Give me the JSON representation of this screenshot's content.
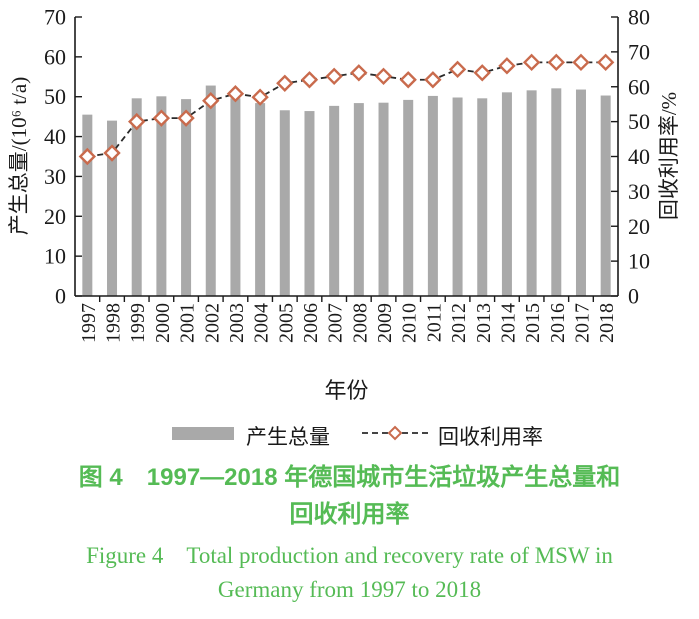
{
  "figure": {
    "caption_cn_line1": "图 4　1997—2018 年德国城市生活垃圾产生总量和",
    "caption_cn_line2": "回收利用率",
    "caption_en_line1": "Figure 4　Total production and recovery rate of MSW in",
    "caption_en_line2": "Germany from 1997 to 2018",
    "caption_color": "#55bb55"
  },
  "chart_data": {
    "type": "combo",
    "categories": [
      "1997",
      "1998",
      "1999",
      "2000",
      "2001",
      "2002",
      "2003",
      "2004",
      "2005",
      "2006",
      "2007",
      "2008",
      "2009",
      "2010",
      "2011",
      "2012",
      "2013",
      "2014",
      "2015",
      "2016",
      "2017",
      "2018"
    ],
    "series": [
      {
        "name": "产生总量",
        "type": "bar",
        "axis": "left",
        "color": "#a9a9a9",
        "values": [
          45.5,
          44.0,
          49.6,
          50.1,
          49.4,
          52.8,
          49.6,
          48.4,
          46.6,
          46.4,
          47.7,
          48.4,
          48.5,
          49.2,
          50.2,
          49.8,
          49.6,
          51.1,
          51.6,
          52.1,
          51.8,
          50.3
        ]
      },
      {
        "name": "回收利用率",
        "type": "line",
        "axis": "right",
        "line_style": "dashed",
        "line_color": "#2a2a2a",
        "marker": "diamond",
        "marker_color": "#c96b4d",
        "marker_fill": "#ffffff",
        "values": [
          40,
          41,
          50,
          51,
          51,
          56,
          58,
          57,
          61,
          62,
          63,
          64,
          63,
          62,
          62,
          65,
          64,
          66,
          67,
          67,
          67,
          67
        ]
      }
    ],
    "xlabel": "年份",
    "ylabel_left": "产生总量/(10⁶ t/a)",
    "ylabel_right": "回收利用率/%",
    "ylim_left": [
      0,
      70
    ],
    "ytick_step_left": 10,
    "ylim_right": [
      0,
      80
    ],
    "ytick_step_right": 10,
    "grid": false,
    "legend_position": "bottom"
  }
}
